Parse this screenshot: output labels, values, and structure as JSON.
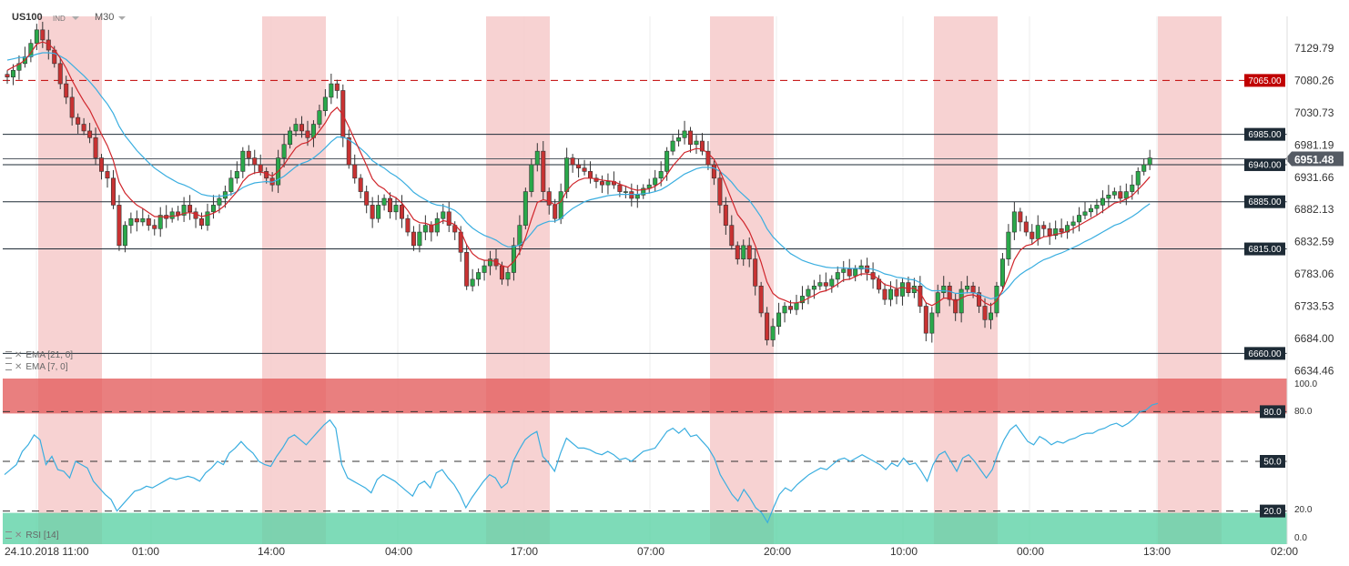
{
  "header": {
    "symbol": "US100",
    "type": "IND",
    "timeframe": "M30"
  },
  "indicators": {
    "ema21": "EMA [21, 0]",
    "ema7": "EMA [7, 0]",
    "rsi": "RSI [14]"
  },
  "icons": {
    "indicator": "indicator-icon",
    "remove": "close-icon",
    "dropdown": "chevron-down-icon"
  },
  "colors": {
    "up": "#2aa84a",
    "down": "#c83232",
    "ema7": "#d0262c",
    "ema21": "#3aaee0",
    "rsi": "#3aaee0",
    "session_shade": "#f6caca",
    "overbought": "#e45f5f",
    "oversold": "#5ed2a6",
    "price_tag": "#555b64"
  },
  "chart_data": [
    {
      "type": "candlestick",
      "title": "",
      "ylim": [
        6620,
        7160
      ],
      "y_ticks": [
        "7129.79",
        "7080.26",
        "7030.73",
        "6981.19",
        "6931.66",
        "6882.13",
        "6832.59",
        "6783.06",
        "6733.53",
        "6684.00",
        "6634.46"
      ],
      "x_ticks": [
        "24.10.2018  11:00",
        "01:00",
        "14:00",
        "04:00",
        "17:00",
        "07:00",
        "20:00",
        "10:00",
        "00:00",
        "13:00",
        "02:00"
      ],
      "current_price": "6951.48",
      "horizontal_levels": [
        {
          "label": "7065.00",
          "value": 7065,
          "style": "dashed",
          "color": "#c00000"
        },
        {
          "label": "6985.00",
          "value": 6985,
          "style": "solid",
          "color": "#1e2b36"
        },
        {
          "label": "6940.00",
          "value": 6940,
          "style": "solid",
          "color": "#1e2b36"
        },
        {
          "label": "6885.00",
          "value": 6885,
          "style": "solid",
          "color": "#1e2b36"
        },
        {
          "label": "6815.00",
          "value": 6815,
          "style": "solid",
          "color": "#1e2b36"
        },
        {
          "label": "6660.00",
          "value": 6660,
          "style": "solid",
          "color": "#1e2b36"
        }
      ],
      "close": [
        7070,
        7080,
        7090,
        7100,
        7120,
        7140,
        7125,
        7110,
        7090,
        7060,
        7040,
        7010,
        7000,
        6990,
        6980,
        6950,
        6930,
        6920,
        6880,
        6820,
        6850,
        6860,
        6855,
        6860,
        6850,
        6845,
        6865,
        6860,
        6870,
        6865,
        6880,
        6870,
        6860,
        6850,
        6870,
        6880,
        6890,
        6900,
        6920,
        6930,
        6960,
        6950,
        6940,
        6930,
        6920,
        6910,
        6950,
        6970,
        6990,
        7000,
        6990,
        6980,
        7000,
        7020,
        7040,
        7060,
        7050,
        6980,
        6940,
        6920,
        6900,
        6880,
        6860,
        6880,
        6890,
        6870,
        6880,
        6860,
        6840,
        6820,
        6840,
        6850,
        6840,
        6860,
        6870,
        6850,
        6840,
        6810,
        6760,
        6770,
        6780,
        6790,
        6800,
        6790,
        6770,
        6780,
        6820,
        6850,
        6900,
        6940,
        6960,
        6900,
        6880,
        6860,
        6900,
        6950,
        6940,
        6935,
        6930,
        6920,
        6915,
        6910,
        6915,
        6910,
        6900,
        6900,
        6890,
        6895,
        6905,
        6910,
        6920,
        6930,
        6960,
        6975,
        6980,
        6990,
        6970,
        6975,
        6960,
        6940,
        6920,
        6880,
        6850,
        6820,
        6800,
        6820,
        6800,
        6760,
        6720,
        6680,
        6700,
        6720,
        6730,
        6725,
        6735,
        6745,
        6755,
        6760,
        6765,
        6760,
        6770,
        6780,
        6785,
        6775,
        6785,
        6790,
        6780,
        6770,
        6755,
        6740,
        6755,
        6745,
        6765,
        6750,
        6760,
        6730,
        6690,
        6720,
        6750,
        6760,
        6740,
        6720,
        6755,
        6760,
        6750,
        6730,
        6710,
        6720,
        6760,
        6800,
        6840,
        6870,
        6855,
        6840,
        6830,
        6850,
        6845,
        6835,
        6845,
        6840,
        6850,
        6855,
        6865,
        6870,
        6875,
        6880,
        6890,
        6895,
        6900,
        6890,
        6900,
        6910,
        6930,
        6940,
        6950
      ],
      "ema7": [
        7080,
        7085,
        7089,
        7095,
        7106,
        7119,
        7122,
        7119,
        7111,
        7098,
        7083,
        7065,
        7049,
        7034,
        7021,
        7003,
        6985,
        6968,
        6946,
        6914,
        6898,
        6888,
        6880,
        6875,
        6869,
        6863,
        6863,
        6862,
        6864,
        6864,
        6868,
        6869,
        6867,
        6863,
        6865,
        6868,
        6873,
        6880,
        6890,
        6900,
        6915,
        6924,
        6928,
        6929,
        6927,
        6923,
        6930,
        6940,
        6953,
        6965,
        6971,
        6973,
        6980,
        6990,
        7002,
        7017,
        7025,
        7014,
        6996,
        6977,
        6958,
        6939,
        6919,
        6909,
        6904,
        6895,
        6891,
        6883,
        6872,
        6859,
        6854,
        6853,
        6850,
        6852,
        6857,
        6855,
        6851,
        6841,
        6821,
        6808,
        6801,
        6798,
        6798,
        6796,
        6790,
        6788,
        6796,
        6810,
        6832,
        6859,
        6884,
        6888,
        6886,
        6880,
        6885,
        6901,
        6911,
        6917,
        6920,
        6920,
        6919,
        6917,
        6916,
        6915,
        6911,
        6908,
        6904,
        6902,
        6903,
        6904,
        6908,
        6914,
        6925,
        6938,
        6948,
        6958,
        6961,
        6964,
        6963,
        6957,
        6948,
        6931,
        6910,
        6888,
        6866,
        6855,
        6841,
        6820,
        6795,
        6766,
        6749,
        6742,
        6739,
        6735,
        6735,
        6737,
        6742,
        6746,
        6751,
        6753,
        6757,
        6763,
        6769,
        6770,
        6774,
        6778,
        6778,
        6776,
        6770,
        6762,
        6760,
        6756,
        6758,
        6756,
        6757,
        6750,
        6735,
        6731,
        6736,
        6742,
        6742,
        6737,
        6742,
        6746,
        6747,
        6743,
        6735,
        6731,
        6738,
        6754,
        6775,
        6799,
        6813,
        6820,
        6822,
        6829,
        6833,
        6834,
        6837,
        6838,
        6841,
        6845,
        6850,
        6855,
        6860,
        6865,
        6871,
        6877,
        6883,
        6885,
        6889,
        6894,
        6903,
        6912,
        6922
      ],
      "ema21": [
        7095,
        7097,
        7099,
        7099,
        7101,
        7104,
        7106,
        7106,
        7105,
        7101,
        7096,
        7088,
        7080,
        7072,
        7063,
        7053,
        7041,
        7030,
        7016,
        6997,
        6983,
        6972,
        6961,
        6952,
        6943,
        6935,
        6929,
        6923,
        6918,
        6913,
        6910,
        6906,
        6901,
        6896,
        6894,
        6893,
        6893,
        6894,
        6896,
        6900,
        6906,
        6910,
        6913,
        6914,
        6915,
        6914,
        6918,
        6923,
        6930,
        6937,
        6942,
        6945,
        6950,
        6957,
        6965,
        6974,
        6981,
        6981,
        6977,
        6971,
        6964,
        6956,
        6946,
        6940,
        6935,
        6928,
        6923,
        6916,
        6908,
        6899,
        6893,
        6888,
        6883,
        6880,
        6879,
        6876,
        6872,
        6865,
        6854,
        6846,
        6840,
        6835,
        6832,
        6828,
        6822,
        6818,
        6818,
        6821,
        6828,
        6838,
        6849,
        6853,
        6856,
        6856,
        6860,
        6868,
        6875,
        6880,
        6885,
        6888,
        6890,
        6892,
        6894,
        6895,
        6896,
        6896,
        6896,
        6896,
        6897,
        6898,
        6900,
        6903,
        6908,
        6914,
        6920,
        6926,
        6930,
        6934,
        6936,
        6936,
        6935,
        6930,
        6923,
        6914,
        6903,
        6895,
        6887,
        6875,
        6862,
        6845,
        6833,
        6824,
        6816,
        6808,
        6803,
        6798,
        6795,
        6792,
        6790,
        6788,
        6787,
        6787,
        6787,
        6786,
        6786,
        6786,
        6786,
        6785,
        6782,
        6778,
        6776,
        6773,
        6772,
        6770,
        6769,
        6765,
        6757,
        6753,
        6753,
        6753,
        6752,
        6749,
        6749,
        6750,
        6750,
        6748,
        6744,
        6741,
        6743,
        6749,
        6758,
        6769,
        6777,
        6783,
        6788,
        6794,
        6799,
        6802,
        6806,
        6809,
        6813,
        6817,
        6821,
        6826,
        6830,
        6835,
        6840,
        6845,
        6850,
        6853,
        6858,
        6863,
        6869,
        6876,
        6882
      ],
      "sessions": [
        [
          "24.10 11:00",
          "01:00"
        ],
        [
          "14:00",
          "16:00"
        ],
        [
          "17:00",
          "19:00"
        ],
        [
          "07:00",
          "09:00"
        ],
        [
          "10:00",
          "12:00"
        ],
        [
          "13:00",
          "15:00"
        ]
      ]
    },
    {
      "type": "line",
      "title": "RSI [14]",
      "ylim": [
        0,
        100
      ],
      "y_ticks": [
        "100.0",
        "80.0",
        "20.0",
        "0.0"
      ],
      "levels": [
        {
          "label": "80.0",
          "value": 80
        },
        {
          "label": "50.0",
          "value": 50
        },
        {
          "label": "20.0",
          "value": 20
        }
      ],
      "values": [
        42,
        45,
        48,
        56,
        60,
        66,
        63,
        48,
        53,
        45,
        44,
        40,
        50,
        48,
        46,
        38,
        34,
        30,
        27,
        20,
        24,
        28,
        32,
        33,
        35,
        34,
        36,
        38,
        40,
        39,
        40,
        41,
        40,
        38,
        43,
        46,
        50,
        48,
        55,
        58,
        62,
        58,
        55,
        50,
        48,
        47,
        53,
        58,
        64,
        66,
        63,
        60,
        64,
        68,
        72,
        75,
        70,
        48,
        40,
        38,
        36,
        34,
        31,
        39,
        42,
        40,
        38,
        35,
        32,
        29,
        36,
        38,
        34,
        43,
        45,
        40,
        36,
        30,
        22,
        28,
        33,
        38,
        42,
        40,
        34,
        37,
        50,
        57,
        63,
        66,
        68,
        53,
        49,
        44,
        55,
        64,
        61,
        58,
        58,
        57,
        55,
        54,
        56,
        54,
        51,
        52,
        50,
        53,
        56,
        57,
        58,
        63,
        68,
        70,
        67,
        70,
        65,
        66,
        62,
        58,
        52,
        42,
        36,
        30,
        26,
        33,
        28,
        22,
        19,
        13,
        22,
        30,
        34,
        32,
        36,
        39,
        42,
        44,
        46,
        45,
        48,
        51,
        52,
        50,
        52,
        54,
        52,
        50,
        48,
        45,
        49,
        47,
        52,
        48,
        49,
        44,
        38,
        48,
        54,
        56,
        50,
        44,
        52,
        54,
        50,
        45,
        40,
        45,
        55,
        63,
        69,
        72,
        67,
        62,
        60,
        65,
        63,
        60,
        62,
        61,
        63,
        64,
        66,
        67,
        67,
        69,
        70,
        72,
        73,
        71,
        73,
        76,
        80,
        81,
        84,
        85
      ]
    }
  ]
}
